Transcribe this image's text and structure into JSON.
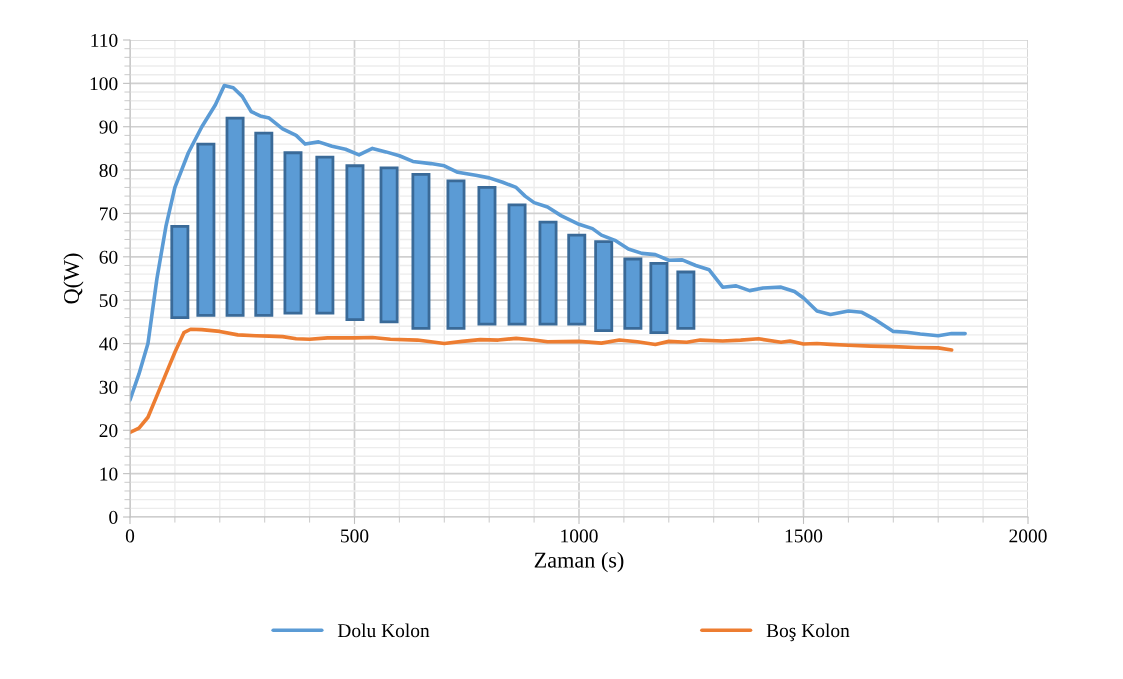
{
  "chart_data": {
    "type": "line",
    "xlabel": "Zaman (s)",
    "ylabel": "Q(W)",
    "xlim": [
      0,
      2000
    ],
    "xticks": [
      0,
      500,
      1000,
      1500,
      2000
    ],
    "ylim": [
      0,
      110
    ],
    "yticks": [
      0,
      10,
      20,
      30,
      40,
      50,
      60,
      70,
      80,
      90,
      100,
      110
    ],
    "grid": true,
    "legend": "bottom",
    "line_style": "solid",
    "series": [
      {
        "type": "bar",
        "color": "#5b9bd5",
        "x": [
          111,
          169,
          234,
          298,
          363,
          434,
          501,
          577,
          648,
          726,
          795,
          862,
          931,
          995,
          1055,
          1120,
          1178,
          1238
        ],
        "base": [
          46,
          46.5,
          46.5,
          46.5,
          47,
          47,
          45.5,
          45,
          43.5,
          43.5,
          44.5,
          44.5,
          44.5,
          44.5,
          43,
          43.5,
          42.5,
          43.5
        ],
        "values": [
          21,
          39.5,
          45.5,
          42,
          37,
          36,
          35.5,
          35.5,
          35.5,
          34,
          31.5,
          27.5,
          23.5,
          20.5,
          20.5,
          16,
          16,
          13
        ]
      },
      {
        "name": "Dolu Kolon",
        "color": "#5b9bd5",
        "x": [
          0,
          20,
          40,
          60,
          80,
          100,
          130,
          160,
          190,
          210,
          230,
          250,
          270,
          290,
          310,
          340,
          370,
          390,
          420,
          450,
          480,
          510,
          540,
          570,
          600,
          630,
          670,
          700,
          730,
          770,
          800,
          830,
          860,
          880,
          900,
          930,
          960,
          1000,
          1030,
          1050,
          1080,
          1110,
          1140,
          1170,
          1200,
          1230,
          1260,
          1290,
          1320,
          1350,
          1380,
          1410,
          1450,
          1480,
          1500,
          1530,
          1560,
          1600,
          1630,
          1660,
          1700,
          1730,
          1760,
          1800,
          1830,
          1860
        ],
        "values": [
          27,
          33,
          40,
          55,
          67,
          76,
          84,
          90,
          95,
          99.5,
          99,
          97,
          93.5,
          92.5,
          92,
          89.5,
          88,
          86,
          86.5,
          85.5,
          84.8,
          83.5,
          85,
          84.2,
          83.3,
          82,
          81.5,
          81,
          79.5,
          78.8,
          78.2,
          77.2,
          76,
          74,
          72.5,
          71.5,
          69.5,
          67.5,
          66.5,
          65,
          63.8,
          61.8,
          60.8,
          60.5,
          59.2,
          59.3,
          58,
          57,
          53,
          53.3,
          52.2,
          52.8,
          53,
          52,
          50.5,
          47.5,
          46.7,
          47.5,
          47.2,
          45.5,
          42.8,
          42.6,
          42.2,
          41.8,
          42.3,
          42.3
        ]
      },
      {
        "name": "Boş Kolon",
        "color": "#ed7d31",
        "x": [
          0,
          20,
          40,
          60,
          80,
          100,
          120,
          135,
          160,
          200,
          240,
          280,
          310,
          340,
          370,
          400,
          440,
          500,
          540,
          580,
          640,
          700,
          740,
          780,
          820,
          860,
          900,
          930,
          1000,
          1050,
          1090,
          1130,
          1170,
          1200,
          1240,
          1270,
          1320,
          1360,
          1400,
          1450,
          1470,
          1500,
          1530,
          1560,
          1600,
          1650,
          1700,
          1750,
          1800,
          1830
        ],
        "values": [
          19.5,
          20.5,
          23,
          28,
          33,
          38,
          42.5,
          43.3,
          43.2,
          42.8,
          42,
          41.8,
          41.7,
          41.6,
          41.1,
          41,
          41.3,
          41.3,
          41.4,
          41,
          40.8,
          40,
          40.5,
          40.9,
          40.8,
          41.2,
          40.8,
          40.4,
          40.5,
          40.1,
          40.8,
          40.4,
          39.8,
          40.5,
          40.3,
          40.8,
          40.6,
          40.8,
          41.1,
          40.3,
          40.6,
          39.9,
          40,
          39.8,
          39.6,
          39.4,
          39.3,
          39.1,
          39,
          38.5
        ]
      }
    ]
  }
}
